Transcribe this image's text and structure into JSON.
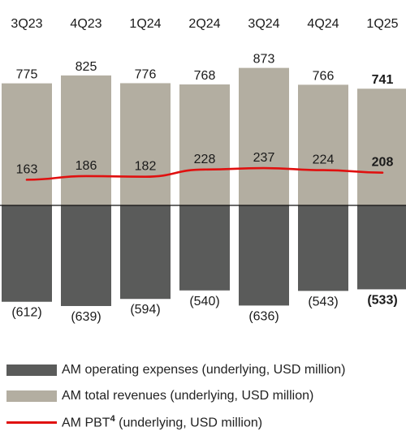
{
  "chart_data": {
    "type": "bar",
    "categories": [
      "3Q23",
      "4Q23",
      "1Q24",
      "2Q24",
      "3Q24",
      "4Q24",
      "1Q25"
    ],
    "series": [
      {
        "name": "AM total revenues (underlying, USD million)",
        "values": [
          775,
          825,
          776,
          768,
          873,
          766,
          741
        ],
        "labels": [
          "775",
          "825",
          "776",
          "768",
          "873",
          "766",
          "741"
        ],
        "color": "#b3aea1"
      },
      {
        "name": "AM operating expenses (underlying, USD million)",
        "values": [
          -612,
          -639,
          -594,
          -540,
          -636,
          -543,
          -533
        ],
        "labels": [
          "(612)",
          "(639)",
          "(594)",
          "(540)",
          "(636)",
          "(543)",
          "(533)"
        ],
        "color": "#5a5b5a"
      },
      {
        "name": "AM PBT⁴ (underlying, USD million)",
        "type": "line",
        "values": [
          163,
          186,
          182,
          228,
          237,
          224,
          208
        ],
        "labels": [
          "163",
          "186",
          "182",
          "228",
          "237",
          "224",
          "208"
        ],
        "color": "#e0100f"
      }
    ],
    "highlight_last": true,
    "ylim": [
      -700,
      900
    ],
    "legend": {
      "position": "bottom",
      "items": [
        {
          "key": "opex",
          "label": "AM operating expenses (underlying, USD million)",
          "color": "#5a5b5a"
        },
        {
          "key": "rev",
          "label": "AM total revenues (underlying, USD million)",
          "color": "#b3aea1"
        },
        {
          "key": "pbt",
          "label_main": "AM PBT",
          "label_sup": "4",
          "label_rest": " (underlying, USD million)",
          "color": "#e0100f"
        }
      ]
    }
  }
}
